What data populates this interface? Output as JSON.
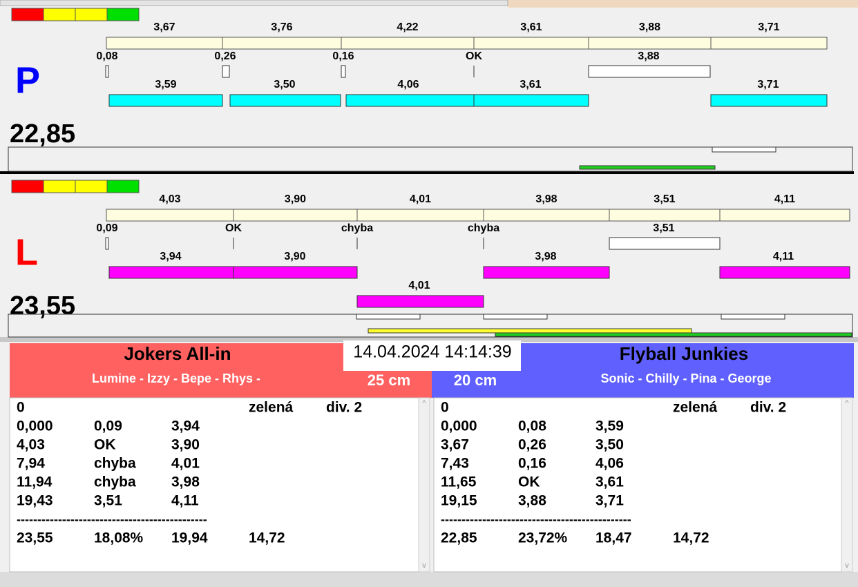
{
  "lanes": [
    {
      "letter": "P",
      "total": "22,85",
      "top": [
        "3,67",
        "3,76",
        "4,22",
        "3,61",
        "3,88",
        "3,71"
      ],
      "mid": [
        "0,08",
        "0,26",
        "0,16",
        "OK",
        "3,88"
      ],
      "bottom": [
        "3,59",
        "3,50",
        "4,06",
        "3,61",
        "3,71"
      ]
    },
    {
      "letter": "L",
      "total": "23,55",
      "top": [
        "4,03",
        "3,90",
        "4,01",
        "3,98",
        "3,51",
        "4,11"
      ],
      "mid": [
        "0,09",
        "OK",
        "chyba",
        "chyba",
        "3,51"
      ],
      "bottom": [
        "3,94",
        "3,90",
        "3,98",
        "4,11"
      ],
      "rerun": [
        "4,01"
      ]
    }
  ],
  "datetime": "14.04.2024 14:14:39",
  "teams": [
    {
      "name": "Jokers All-in",
      "members": "Lumine - Izzy - Bepe - Rhys -",
      "height": "25 cm",
      "header": [
        "0",
        "zelená",
        "div. 2"
      ],
      "rows": [
        [
          "0,000",
          "0,09",
          "3,94"
        ],
        [
          "4,03",
          "OK",
          "3,90"
        ],
        [
          "7,94",
          "chyba",
          "4,01"
        ],
        [
          "11,94",
          "chyba",
          "3,98"
        ],
        [
          "19,43",
          "3,51",
          "4,11"
        ]
      ],
      "separator": "----------------------------------------------",
      "totals": [
        "23,55",
        "18,08%",
        "19,94",
        "14,72"
      ]
    },
    {
      "name": "Flyball Junkies",
      "members": "Sonic - Chilly - Pina - George",
      "height": "20 cm",
      "header": [
        "0",
        "zelená",
        "div. 2"
      ],
      "rows": [
        [
          "0,000",
          "0,08",
          "3,59"
        ],
        [
          "3,67",
          "0,26",
          "3,50"
        ],
        [
          "7,43",
          "0,16",
          "4,06"
        ],
        [
          "11,65",
          "OK",
          "3,61"
        ],
        [
          "19,15",
          "3,88",
          "3,71"
        ]
      ],
      "separator": "----------------------------------------------",
      "totals": [
        "22,85",
        "23,72%",
        "18,47",
        "14,72"
      ]
    }
  ]
}
